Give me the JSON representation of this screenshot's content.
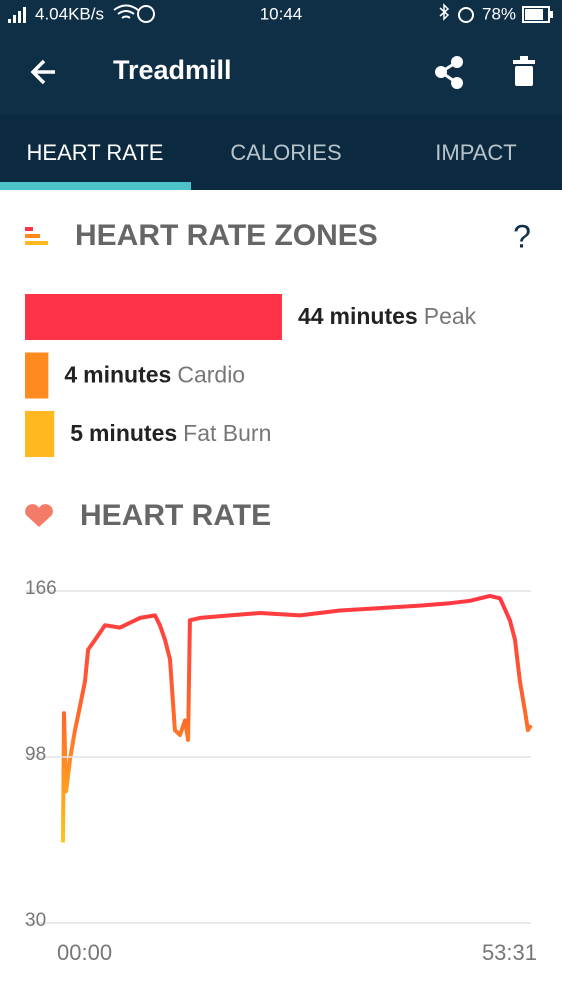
{
  "status": {
    "speed": "4.04KB/s",
    "time": "10:44",
    "battery": "78%"
  },
  "header": {
    "title": "Treadmill"
  },
  "tabs": [
    "HEART RATE",
    "CALORIES",
    "IMPACT"
  ],
  "zones": {
    "title": "HEART RATE ZONES",
    "help": "?",
    "items": [
      {
        "value": 44,
        "unit": "minutes",
        "label": "Peak",
        "color": "#ff3347"
      },
      {
        "value": 4,
        "unit": "minutes",
        "label": "Cardio",
        "color": "#ff8a1f"
      },
      {
        "value": 5,
        "unit": "minutes",
        "label": "Fat Burn",
        "color": "#ffb81f"
      }
    ]
  },
  "chart_data": {
    "type": "line",
    "title": "HEART RATE",
    "x": [
      0,
      7,
      21,
      48,
      82,
      117,
      151,
      172,
      220,
      288,
      391,
      528,
      631,
      665,
      700,
      734,
      768,
      803,
      837,
      858,
      871,
      940,
      1146,
      1351,
      1626,
      1900,
      2175,
      2449,
      2655,
      2792,
      2929,
      2998,
      3066,
      3101,
      3135,
      3169,
      3190,
      3211
    ],
    "series": [
      {
        "name": "Heart rate",
        "values": [
          63,
          116,
          84,
          97,
          109,
          119,
          129,
          142,
          146,
          152,
          151,
          155,
          156,
          152,
          146,
          138,
          109,
          107,
          113,
          105,
          154,
          155,
          156,
          157,
          156,
          158,
          159,
          160,
          161,
          162,
          164,
          163,
          154,
          146,
          129,
          117,
          109,
          111
        ]
      }
    ],
    "gradient": [
      "#ff3344",
      "#ff6a2a",
      "#ffc61a"
    ],
    "xlim": [
      0,
      3211
    ],
    "xticks": [
      {
        "value": 0,
        "label": "00:00"
      },
      {
        "value": 3211,
        "label": "53:31"
      }
    ],
    "ylim": [
      30,
      166
    ],
    "yticks": [
      30,
      98,
      166
    ],
    "grid": true
  }
}
